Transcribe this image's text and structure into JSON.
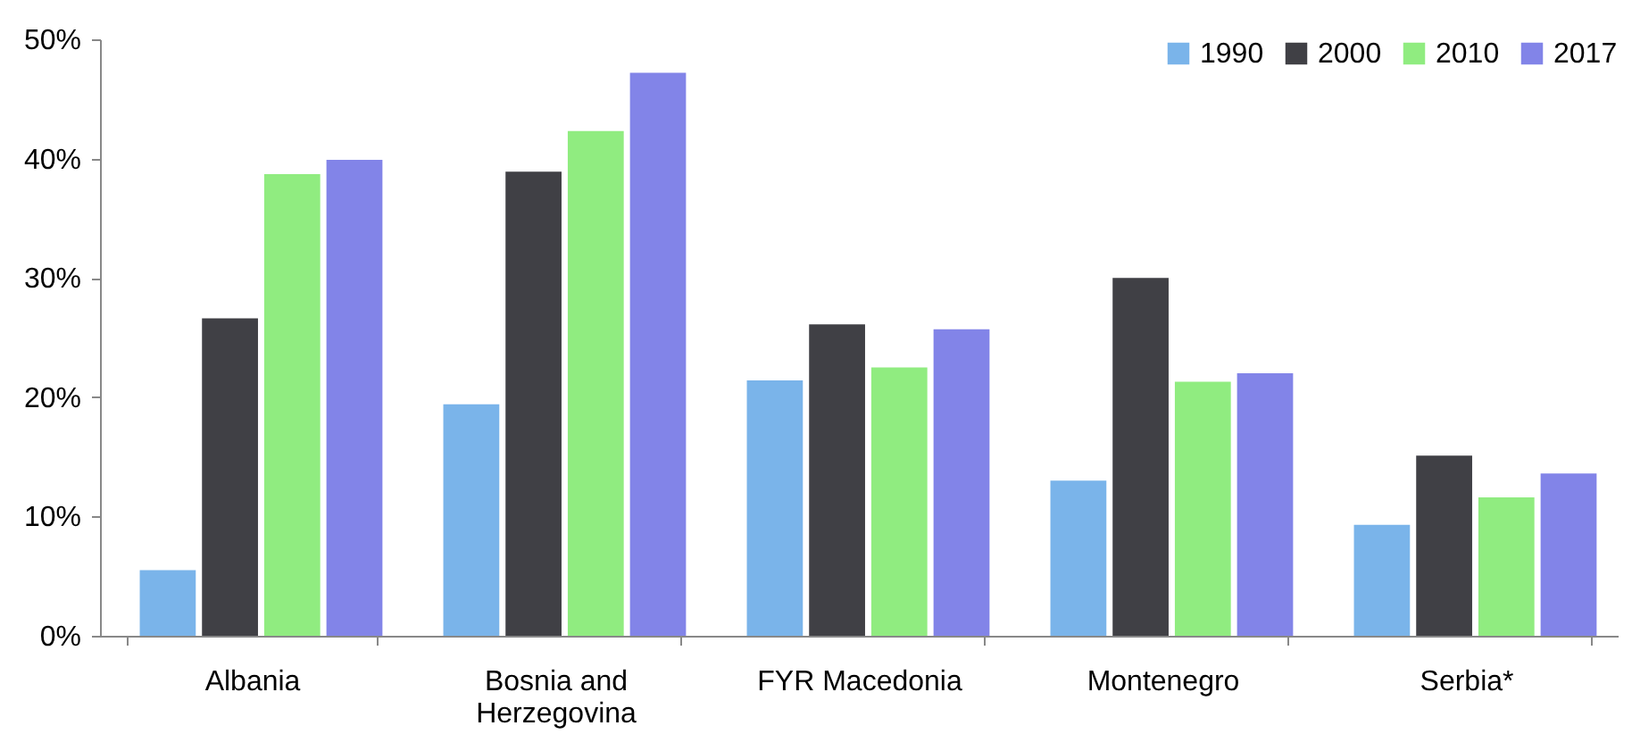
{
  "chart_data": {
    "type": "bar",
    "categories": [
      "Albania",
      "Bosnia and Herzegovina",
      "FYR Macedonia",
      "Montenegro",
      "Serbia*"
    ],
    "series": [
      {
        "name": "1990",
        "color": "#7ab4ea",
        "values": [
          5.5,
          19.4,
          21.4,
          13.0,
          9.3
        ]
      },
      {
        "name": "2000",
        "color": "#404045",
        "values": [
          26.6,
          38.9,
          26.1,
          30.0,
          15.1
        ]
      },
      {
        "name": "2010",
        "color": "#90ec80",
        "values": [
          38.7,
          42.3,
          22.5,
          21.3,
          11.6
        ]
      },
      {
        "name": "2017",
        "color": "#8284e8",
        "values": [
          39.9,
          47.2,
          25.7,
          22.0,
          13.6
        ]
      }
    ],
    "ylim": [
      0,
      50
    ],
    "yticks": [
      {
        "value": 0,
        "label": "0%"
      },
      {
        "value": 10,
        "label": "10%"
      },
      {
        "value": 20,
        "label": "20%"
      },
      {
        "value": 30,
        "label": "30%"
      },
      {
        "value": 40,
        "label": "40%"
      },
      {
        "value": 50,
        "label": "50%"
      }
    ],
    "grid": false,
    "legend": "top right"
  }
}
